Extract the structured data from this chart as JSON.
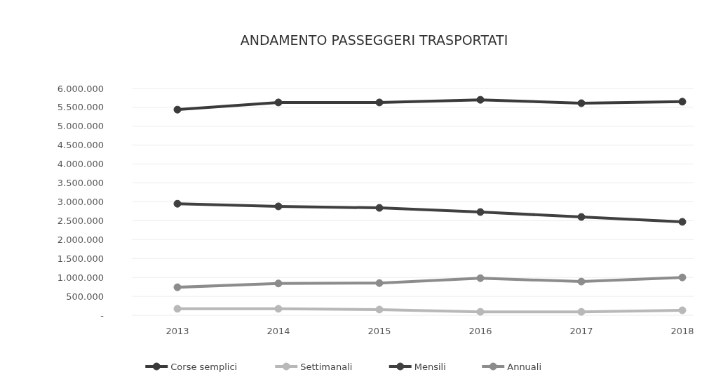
{
  "chart_data": {
    "type": "line",
    "title": "ANDAMENTO PASSEGGERI TRASPORTATI",
    "categories": [
      "2013",
      "2014",
      "2015",
      "2016",
      "2017",
      "2018"
    ],
    "series": [
      {
        "name": "Corse semplici",
        "color": "#3a3a3a",
        "values": [
          5440000,
          5630000,
          5630000,
          5700000,
          5610000,
          5650000
        ]
      },
      {
        "name": "Settimanali",
        "color": "#b8b8b8",
        "values": [
          170000,
          170000,
          150000,
          90000,
          90000,
          130000
        ]
      },
      {
        "name": "Mensili",
        "color": "#404040",
        "values": [
          2950000,
          2880000,
          2840000,
          2730000,
          2600000,
          2470000
        ]
      },
      {
        "name": "Annuali",
        "color": "#8c8c8c",
        "values": [
          740000,
          840000,
          850000,
          980000,
          890000,
          1000000
        ]
      }
    ],
    "ylim": [
      0,
      6000000
    ],
    "yticks": [
      {
        "value": 0,
        "label": "-"
      },
      {
        "value": 500000,
        "label": "500.000"
      },
      {
        "value": 1000000,
        "label": "1.000.000"
      },
      {
        "value": 1500000,
        "label": "1.500.000"
      },
      {
        "value": 2000000,
        "label": "2.000.000"
      },
      {
        "value": 2500000,
        "label": "2.500.000"
      },
      {
        "value": 3000000,
        "label": "3.000.000"
      },
      {
        "value": 3500000,
        "label": "3.500.000"
      },
      {
        "value": 4000000,
        "label": "4.000.000"
      },
      {
        "value": 4500000,
        "label": "4.500.000"
      },
      {
        "value": 5000000,
        "label": "5.000.000"
      },
      {
        "value": 5500000,
        "label": "5.500.000"
      },
      {
        "value": 6000000,
        "label": "6.000.000"
      }
    ],
    "grid": "y",
    "legend": "bottom",
    "marker": "circle",
    "line_style": "solid"
  }
}
